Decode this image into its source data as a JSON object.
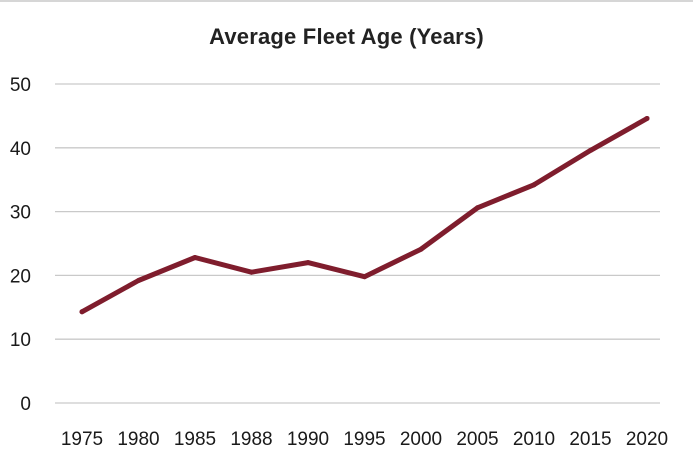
{
  "chart_data": {
    "type": "line",
    "title": "Average Fleet Age (Years)",
    "xlabel": "",
    "ylabel": "",
    "categories": [
      "1975",
      "1980",
      "1985",
      "1988",
      "1990",
      "1995",
      "2000",
      "2005",
      "2010",
      "2015",
      "2020"
    ],
    "series": [
      {
        "values": [
          14.3,
          19.2,
          22.8,
          20.5,
          22.0,
          19.8,
          24.1,
          30.6,
          34.2,
          39.6,
          44.6
        ]
      }
    ],
    "ylim": [
      0,
      50
    ],
    "yticks": [
      0,
      10,
      20,
      30,
      40,
      50
    ],
    "grid": "horizontal",
    "legend": "none",
    "colors": {
      "line": "#7f1d2d",
      "grid": "#c9c9c9",
      "text": "#1a1a1a"
    }
  }
}
